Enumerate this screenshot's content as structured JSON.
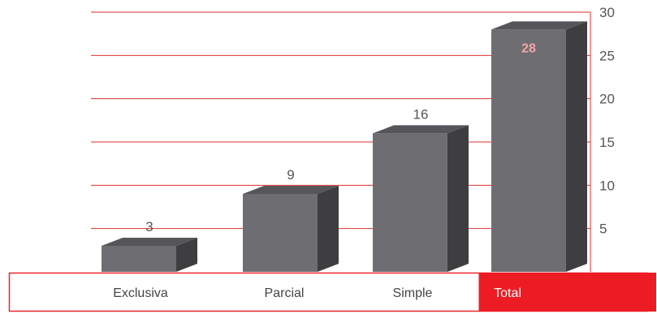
{
  "chart_data": {
    "type": "bar",
    "title": "",
    "xlabel": "",
    "ylabel": "",
    "categories": [
      "Exclusiva",
      "Parcial",
      "Simple",
      "Total"
    ],
    "values": [
      3,
      9,
      16,
      28
    ],
    "ylim": [
      0,
      30
    ],
    "yticks": [
      5,
      10,
      15,
      20,
      25,
      30
    ],
    "grid": true,
    "highlight_category": "Total",
    "colors": {
      "bar_front": "#6e6e72",
      "bar_side": "#3e3e40",
      "bar_top": "#55555a",
      "grid": "#e0312f",
      "category_band_border": "#e8252b",
      "highlight_fill": "#ed1c24",
      "highlight_value_text": "#f3a6a6"
    }
  }
}
